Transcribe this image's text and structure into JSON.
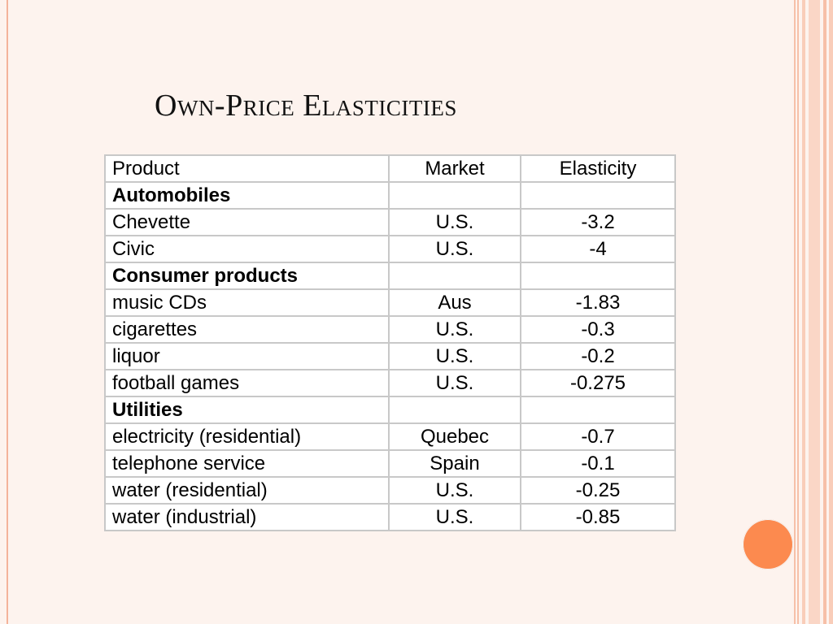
{
  "slide": {
    "title": "Own-Price Elasticities"
  },
  "table": {
    "columns": [
      "Product",
      "Market",
      "Elasticity"
    ],
    "rows": [
      {
        "product": "Automobiles",
        "market": "",
        "elasticity": "",
        "group": true
      },
      {
        "product": "Chevette",
        "market": "U.S.",
        "elasticity": "-3.2",
        "group": false
      },
      {
        "product": "Civic",
        "market": "U.S.",
        "elasticity": "-4",
        "group": false
      },
      {
        "product": "Consumer products",
        "market": "",
        "elasticity": "",
        "group": true
      },
      {
        "product": "music CDs",
        "market": "Aus",
        "elasticity": "-1.83",
        "group": false
      },
      {
        "product": "cigarettes",
        "market": "U.S.",
        "elasticity": "-0.3",
        "group": false
      },
      {
        "product": "liquor",
        "market": "U.S.",
        "elasticity": "-0.2",
        "group": false
      },
      {
        "product": "football games",
        "market": "U.S.",
        "elasticity": "-0.275",
        "group": false
      },
      {
        "product": "Utilities",
        "market": "",
        "elasticity": "",
        "group": true
      },
      {
        "product": "electricity (residential)",
        "market": "Quebec",
        "elasticity": "-0.7",
        "group": false
      },
      {
        "product": "telephone service",
        "market": "Spain",
        "elasticity": "-0.1",
        "group": false
      },
      {
        "product": "water (residential)",
        "market": "U.S.",
        "elasticity": "-0.25",
        "group": false
      },
      {
        "product": "water (industrial)",
        "market": "U.S.",
        "elasticity": "-0.85",
        "group": false
      }
    ]
  },
  "colors": {
    "background": "#fdf3ee",
    "accent_stripes": "#f6c0a8",
    "dot": "#fc8a4f"
  }
}
